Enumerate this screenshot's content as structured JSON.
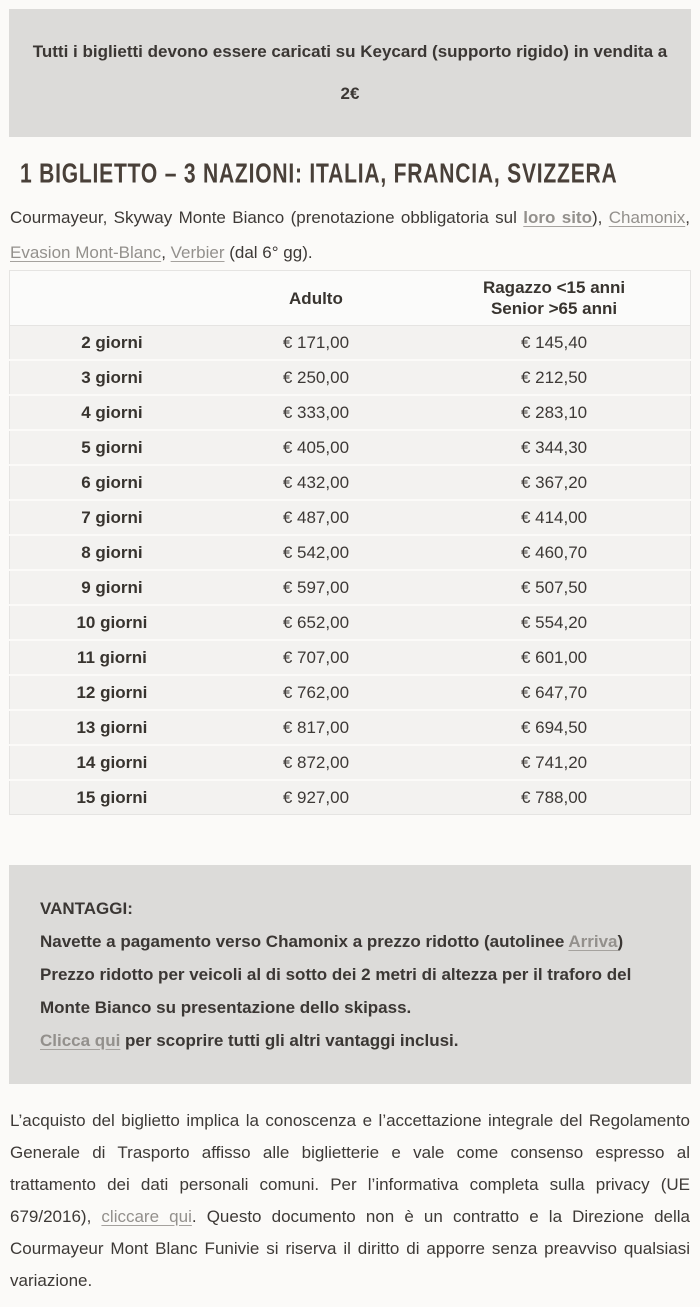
{
  "colors": {
    "page_bg": "#fbfaf8",
    "box_bg": "#dcdbd9",
    "table_row_bg": "#f3f2f0",
    "table_header_bg": "#fbfbfa",
    "table_border": "#e5e4e2",
    "text": "#3d3936",
    "heading": "#494039",
    "link": "#93908c"
  },
  "notice": {
    "line1": "Tutti i biglietti devono essere caricati su Keycard (supporto rigido) in vendita a",
    "line2": "2€"
  },
  "heading": "1 BIGLIETTO – 3 NAZIONI: ITALIA, FRANCIA, SVIZZERA",
  "intro_segments": [
    {
      "t": "Courmayeur, Skyway Monte Bianco (prenotazione obbligatoria sul "
    },
    {
      "t": "loro sito",
      "link": true,
      "bold": true
    },
    {
      "t": "), "
    },
    {
      "t": "Chamonix",
      "link": true
    },
    {
      "t": ", "
    },
    {
      "t": "Evasion Mont-Blanc",
      "link": true
    },
    {
      "t": ", "
    },
    {
      "t": "Verbier",
      "link": true
    },
    {
      "t": " (dal 6° gg)."
    }
  ],
  "price_table": {
    "col_days": "",
    "col_adult": "Adulto",
    "col_reduced": "Ragazzo <15 anni\nSenior >65 anni",
    "rows": [
      [
        "2 giorni",
        "€ 171,00",
        "€ 145,40"
      ],
      [
        "3 giorni",
        "€ 250,00",
        "€ 212,50"
      ],
      [
        "4 giorni",
        "€ 333,00",
        "€ 283,10"
      ],
      [
        "5 giorni",
        "€ 405,00",
        "€ 344,30"
      ],
      [
        "6 giorni",
        "€ 432,00",
        "€ 367,20"
      ],
      [
        "7 giorni",
        "€ 487,00",
        "€ 414,00"
      ],
      [
        "8 giorni",
        "€ 542,00",
        "€ 460,70"
      ],
      [
        "9 giorni",
        "€ 597,00",
        "€ 507,50"
      ],
      [
        "10 giorni",
        "€ 652,00",
        "€ 554,20"
      ],
      [
        "11 giorni",
        "€ 707,00",
        "€ 601,00"
      ],
      [
        "12 giorni",
        "€ 762,00",
        "€ 647,70"
      ],
      [
        "13 giorni",
        "€ 817,00",
        "€ 694,50"
      ],
      [
        "14 giorni",
        "€ 872,00",
        "€ 741,20"
      ],
      [
        "15 giorni",
        "€ 927,00",
        "€ 788,00"
      ]
    ]
  },
  "vantaggi": {
    "title": "VANTAGGI:",
    "lines": [
      [
        {
          "t": "Navette a pagamento verso Chamonix a prezzo ridotto (autolinee "
        },
        {
          "t": "Arriva",
          "link": true
        },
        {
          "t": ")"
        }
      ],
      [
        {
          "t": "Prezzo ridotto per veicoli al di sotto dei 2 metri di altezza per il traforo del Monte Bianco su presentazione dello skipass."
        }
      ],
      [
        {
          "t": "Clicca qui",
          "link": true
        },
        {
          "t": " per scoprire tutti gli altri vantaggi inclusi."
        }
      ]
    ]
  },
  "footer_segments": [
    {
      "t": "L’acquisto del biglietto implica la conoscenza e l’accettazione integrale del Regolamento Generale di Trasporto affisso alle biglietterie e vale come consenso espresso al trattamento dei dati personali comuni. Per l’informativa completa sulla privacy (UE 679/2016), "
    },
    {
      "t": "cliccare qui",
      "link": true
    },
    {
      "t": ". Questo documento non è un contratto e la Direzione della Courmayeur Mont Blanc Funivie si riserva il diritto di apporre senza preavviso qualsiasi variazione."
    }
  ]
}
